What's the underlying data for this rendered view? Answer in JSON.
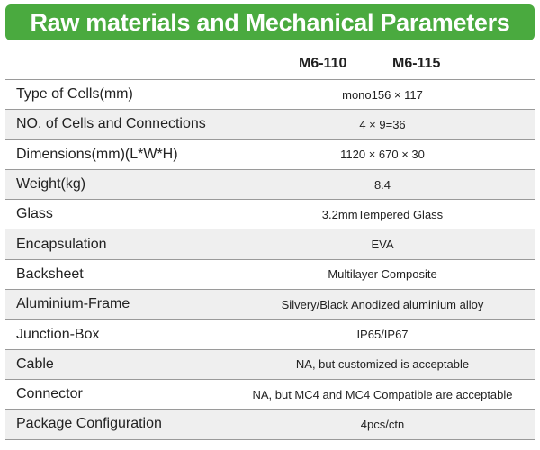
{
  "header": {
    "title": "Raw materials and Mechanical Parameters",
    "accent_color": "#4aaa3f"
  },
  "models": [
    "M6-110",
    "M6-115"
  ],
  "rows": [
    {
      "label": "Type of Cells(mm)",
      "value": "mono156 × 117"
    },
    {
      "label": "NO. of Cells and Connections",
      "value": "4 × 9=36"
    },
    {
      "label": "Dimensions(mm)(L*W*H)",
      "value": "1120 × 670 × 30"
    },
    {
      "label": "Weight(kg)",
      "value": "8.4"
    },
    {
      "label": "Glass",
      "value": "3.2mmTempered Glass"
    },
    {
      "label": "Encapsulation",
      "value": "EVA"
    },
    {
      "label": "Backsheet",
      "value": "Multilayer Composite"
    },
    {
      "label": "Aluminium-Frame",
      "value": "Silvery/Black Anodized aluminium alloy"
    },
    {
      "label": "Junction-Box",
      "value": "IP65/IP67"
    },
    {
      "label": "Cable",
      "value": "NA, but customized is acceptable"
    },
    {
      "label": "Connector",
      "value": "NA, but MC4 and MC4 Compatible are acceptable"
    },
    {
      "label": "Package Configuration",
      "value": "4pcs/ctn"
    }
  ]
}
